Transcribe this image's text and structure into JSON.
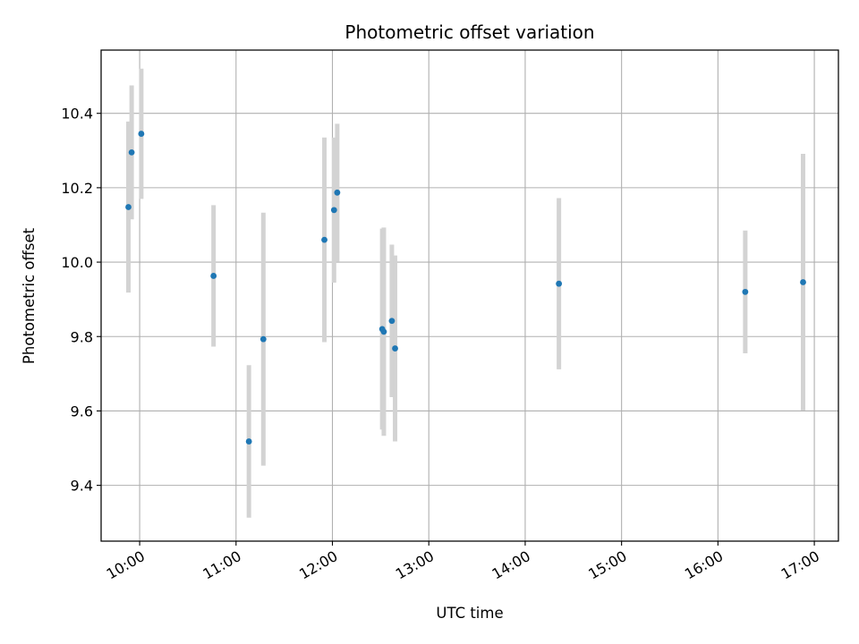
{
  "chart_data": {
    "type": "scatter",
    "title": "Photometric offset variation",
    "xlabel": "UTC time",
    "ylabel": "Photometric offset",
    "x_axis": {
      "kind": "time",
      "range": [
        "09:36",
        "17:15"
      ],
      "ticks": [
        "10:00",
        "11:00",
        "12:00",
        "13:00",
        "14:00",
        "15:00",
        "16:00",
        "17:00"
      ]
    },
    "y_axis": {
      "range": [
        9.25,
        10.57
      ],
      "ticks": [
        "9.4",
        "9.6",
        "9.8",
        "10.0",
        "10.2",
        "10.4"
      ]
    },
    "grid": true,
    "colors": {
      "points": "#1f77b4",
      "errorbars": "#d3d3d3",
      "grid": "#b0b0b0"
    },
    "series": [
      {
        "points": [
          {
            "x": "09:53",
            "y": 10.148,
            "err": 0.23
          },
          {
            "x": "09:55",
            "y": 10.295,
            "err": 0.18
          },
          {
            "x": "10:01",
            "y": 10.345,
            "err": 0.175
          },
          {
            "x": "10:46",
            "y": 9.963,
            "err": 0.19
          },
          {
            "x": "11:08",
            "y": 9.518,
            "err": 0.205
          },
          {
            "x": "11:17",
            "y": 9.793,
            "err": 0.34
          },
          {
            "x": "11:55",
            "y": 10.06,
            "err": 0.275
          },
          {
            "x": "12:01",
            "y": 10.14,
            "err": 0.195
          },
          {
            "x": "12:03",
            "y": 10.187,
            "err": 0.185
          },
          {
            "x": "12:31",
            "y": 9.82,
            "err": 0.27
          },
          {
            "x": "12:32",
            "y": 9.813,
            "err": 0.28
          },
          {
            "x": "12:37",
            "y": 9.842,
            "err": 0.205
          },
          {
            "x": "12:39",
            "y": 9.768,
            "err": 0.25
          },
          {
            "x": "14:21",
            "y": 9.942,
            "err": 0.23
          },
          {
            "x": "16:17",
            "y": 9.92,
            "err": 0.165
          },
          {
            "x": "16:53",
            "y": 9.946,
            "err": 0.345
          }
        ]
      }
    ]
  }
}
